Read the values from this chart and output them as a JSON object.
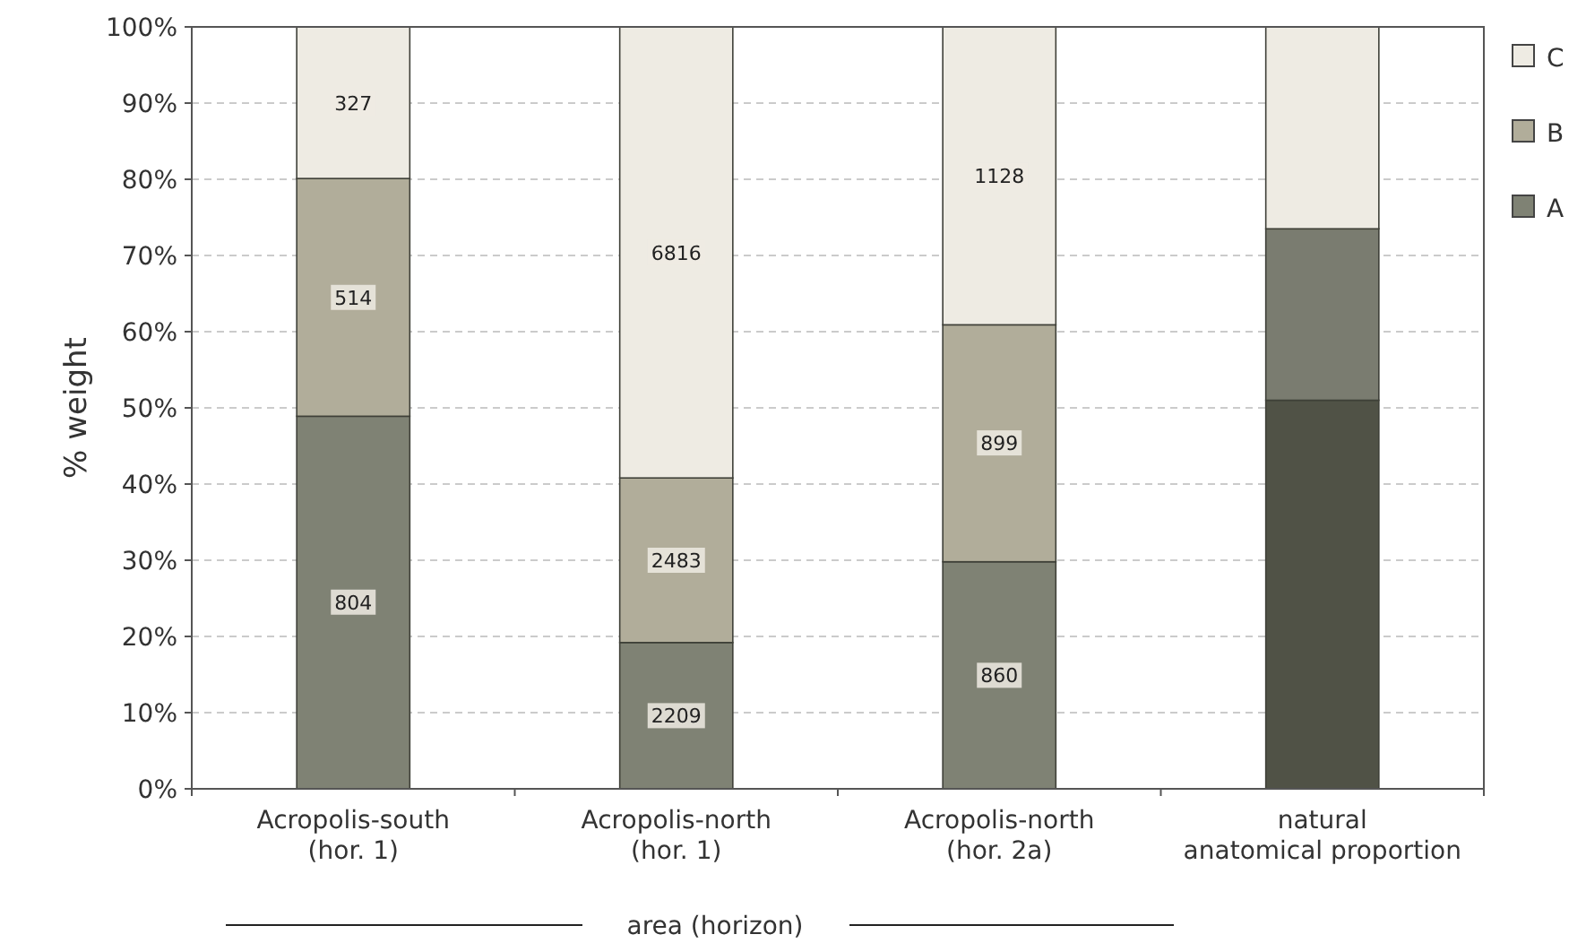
{
  "chart_data": {
    "type": "bar",
    "stacked": true,
    "xlabel": "area (horizon)",
    "ylabel": "% weight",
    "categories": [
      "Acropolis-south\n(hor. 1)",
      "Acropolis-north\n(hor. 1)",
      "Acropolis-north\n(hor. 2a)",
      "natural\nanatomical proportion"
    ],
    "series": [
      {
        "name": "A",
        "color": "#7f8274",
        "colors": [
          "#7f8274",
          "#7f8274",
          "#7f8274",
          "#505246"
        ],
        "values": [
          48.9,
          19.2,
          29.8,
          51
        ]
      },
      {
        "name": "B",
        "color": "#b1ad9a",
        "colors": [
          "#b1ad9a",
          "#b1ad9a",
          "#b1ad9a",
          "#7a7c70"
        ],
        "values": [
          31.2,
          21.6,
          31.1,
          22.5
        ]
      },
      {
        "name": "C",
        "color": "#eeebe3",
        "colors": [
          "#eeebe3",
          "#eeebe3",
          "#eeebe3",
          "#eeebe3"
        ],
        "values": [
          19.9,
          59.2,
          39.1,
          26.5
        ]
      }
    ],
    "annotations": [
      {
        "text": "804",
        "x": "Acropolis-south\n(hor. 1)",
        "y": 24.5
      },
      {
        "text": "514",
        "x": "Acropolis-south\n(hor. 1)",
        "y": 64.5
      },
      {
        "text": "327",
        "x": "Acropolis-south\n(hor. 1)",
        "y": 90
      },
      {
        "text": "2209",
        "x": "Acropolis-north\n(hor. 1)",
        "y": 9.6
      },
      {
        "text": "2483",
        "x": "Acropolis-north\n(hor. 1)",
        "y": 30
      },
      {
        "text": "6816",
        "x": "Acropolis-north\n(hor. 1)",
        "y": 70.4
      },
      {
        "text": "860",
        "x": "Acropolis-north\n(hor. 2a)",
        "y": 14.9
      },
      {
        "text": "899",
        "x": "Acropolis-north\n(hor. 2a)",
        "y": 45.4
      },
      {
        "text": "1128",
        "x": "Acropolis-north\n(hor. 2a)",
        "y": 80.5
      }
    ],
    "ylim": [
      0,
      100
    ],
    "yticks": [
      {
        "value": 0,
        "label": "0%"
      },
      {
        "value": 10,
        "label": "10%"
      },
      {
        "value": 20,
        "label": "20%"
      },
      {
        "value": 30,
        "label": "30%"
      },
      {
        "value": 40,
        "label": "40%"
      },
      {
        "value": 50,
        "label": "50%"
      },
      {
        "value": 60,
        "label": "60%"
      },
      {
        "value": 70,
        "label": "70%"
      },
      {
        "value": 80,
        "label": "80%"
      },
      {
        "value": 90,
        "label": "90%"
      },
      {
        "value": 100,
        "label": "100%"
      }
    ],
    "grid": "y",
    "legend": "right"
  }
}
